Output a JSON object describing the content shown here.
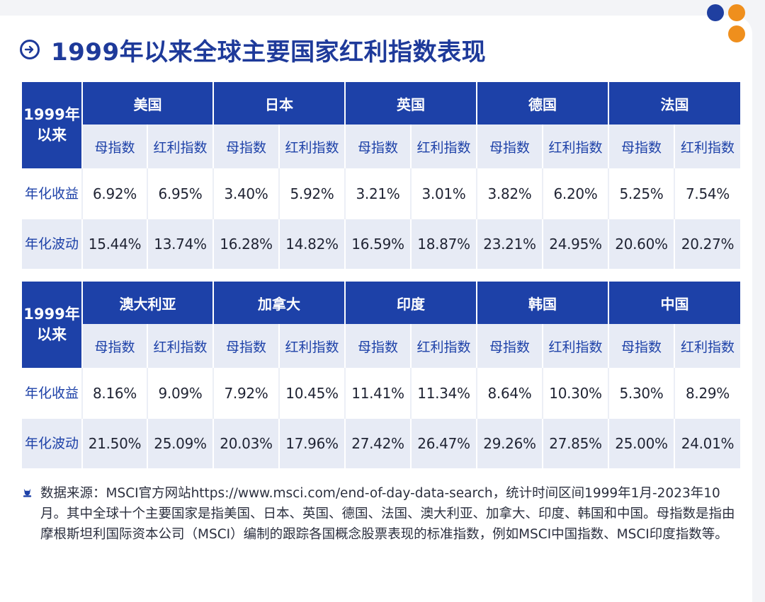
{
  "title": "1999年以来全球主要国家红利指数表现",
  "colors": {
    "brand_blue": "#1d41a8",
    "title_blue": "#1e3a9a",
    "dot_blue": "#1f3fa0",
    "dot_orange": "#ef8f1d",
    "light_row": "#e7ebf5"
  },
  "icons": {
    "title": "arrow-right-circle-icon",
    "note": "pin-icon"
  },
  "sub_headers": {
    "parent": "母指数",
    "dividend": "红利指数"
  },
  "row_labels": {
    "corner": "1999年以来",
    "return": "年化收益",
    "volatility": "年化波动"
  },
  "tables": [
    {
      "countries": [
        {
          "name": "美国",
          "return": [
            "6.92%",
            "6.95%"
          ],
          "volatility": [
            "15.44%",
            "13.74%"
          ]
        },
        {
          "name": "日本",
          "return": [
            "3.40%",
            "5.92%"
          ],
          "volatility": [
            "16.28%",
            "14.82%"
          ]
        },
        {
          "name": "英国",
          "return": [
            "3.21%",
            "3.01%"
          ],
          "volatility": [
            "16.59%",
            "18.87%"
          ]
        },
        {
          "name": "德国",
          "return": [
            "3.82%",
            "6.20%"
          ],
          "volatility": [
            "23.21%",
            "24.95%"
          ]
        },
        {
          "name": "法国",
          "return": [
            "5.25%",
            "7.54%"
          ],
          "volatility": [
            "20.60%",
            "20.27%"
          ]
        }
      ]
    },
    {
      "countries": [
        {
          "name": "澳大利亚",
          "return": [
            "8.16%",
            "9.09%"
          ],
          "volatility": [
            "21.50%",
            "25.09%"
          ]
        },
        {
          "name": "加拿大",
          "return": [
            "7.92%",
            "10.45%"
          ],
          "volatility": [
            "20.03%",
            "17.96%"
          ]
        },
        {
          "name": "印度",
          "return": [
            "11.41%",
            "11.34%"
          ],
          "volatility": [
            "27.42%",
            "26.47%"
          ]
        },
        {
          "name": "韩国",
          "return": [
            "8.64%",
            "10.30%"
          ],
          "volatility": [
            "29.26%",
            "27.85%"
          ]
        },
        {
          "name": "中国",
          "return": [
            "5.30%",
            "8.29%"
          ],
          "volatility": [
            "25.00%",
            "24.01%"
          ]
        }
      ]
    }
  ],
  "note": "数据来源：MSCI官方网站https://www.msci.com/end-of-day-data-search，统计时间区间1999年1月-2023年10月。其中全球十个主要国家是指美国、日本、英国、德国、法国、澳大利亚、加拿大、印度、韩国和中国。母指数是指由摩根斯坦利国际资本公司（MSCI）编制的跟踪各国概念股票表现的标准指数，例如MSCI中国指数、MSCI印度指数等。"
}
